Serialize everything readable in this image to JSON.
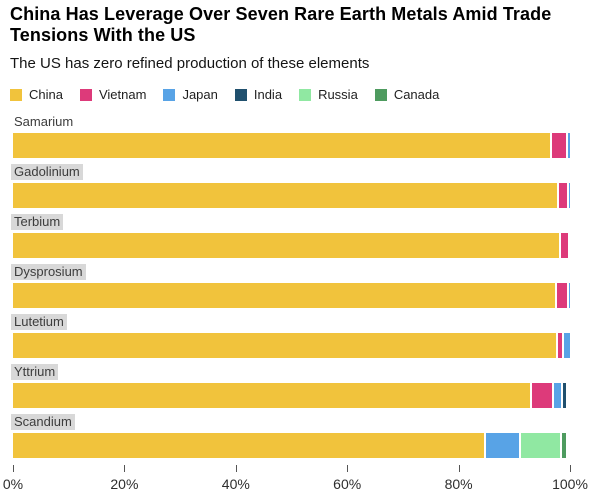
{
  "header": {
    "title": "China Has Leverage Over Seven Rare Earth Metals Amid Trade Tensions With the US",
    "subtitle": "The US has zero refined production of these elements"
  },
  "legend": [
    {
      "label": "China",
      "color": "#F1C33C"
    },
    {
      "label": "Vietnam",
      "color": "#DD3A7A"
    },
    {
      "label": "Japan",
      "color": "#58A3E6"
    },
    {
      "label": "India",
      "color": "#20506E"
    },
    {
      "label": "Russia",
      "color": "#90E8A2"
    },
    {
      "label": "Canada",
      "color": "#4E9B5F"
    }
  ],
  "chart_data": {
    "type": "bar",
    "orientation": "horizontal",
    "stacked": true,
    "unit": "% share of refined production",
    "title": "China Has Leverage Over Seven Rare Earth Metals Amid Trade Tensions With the US",
    "subtitle": "The US has zero refined production of these elements",
    "categories": [
      "Samarium",
      "Gadolinium",
      "Terbium",
      "Dysprosium",
      "Lutetium",
      "Yttrium",
      "Scandium"
    ],
    "series": [
      {
        "name": "China",
        "values": [
          96.4,
          97.6,
          98.1,
          97.3,
          97.4,
          92.8,
          84.5
        ]
      },
      {
        "name": "Vietnam",
        "values": [
          2.9,
          1.9,
          1.5,
          2.1,
          1.2,
          4.0,
          0
        ]
      },
      {
        "name": "Japan",
        "values": [
          0.7,
          0.5,
          0.4,
          0.6,
          1.4,
          1.5,
          6.4
        ]
      },
      {
        "name": "India",
        "values": [
          0,
          0,
          0,
          0,
          0,
          0.9,
          0
        ]
      },
      {
        "name": "Russia",
        "values": [
          0,
          0,
          0,
          0,
          0,
          0,
          7.3
        ]
      },
      {
        "name": "Canada",
        "values": [
          0,
          0,
          0,
          0,
          0,
          0,
          1.0
        ]
      }
    ],
    "xlabel": "",
    "ylabel": "",
    "xlim": [
      0,
      100
    ],
    "x_tick_values": [
      0,
      20,
      40,
      60,
      80,
      100
    ],
    "x_tick_labels": [
      "0%",
      "20%",
      "40%",
      "60%",
      "80%",
      "100%"
    ],
    "grid": false,
    "legend_position": "top",
    "row_label_highlighted": [
      false,
      true,
      true,
      true,
      true,
      true,
      true
    ]
  }
}
